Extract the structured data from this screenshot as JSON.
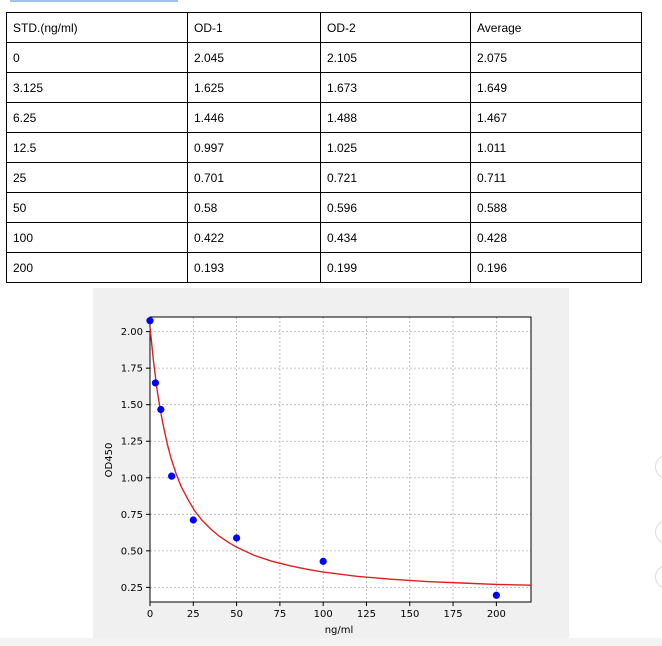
{
  "table": {
    "headers": [
      "STD.(ng/ml)",
      "OD-1",
      "OD-2",
      "Average"
    ],
    "rows": [
      [
        "0",
        "2.045",
        "2.105",
        "2.075"
      ],
      [
        "3.125",
        "1.625",
        "1.673",
        "1.649"
      ],
      [
        "6.25",
        "1.446",
        "1.488",
        "1.467"
      ],
      [
        "12.5",
        "0.997",
        "1.025",
        "1.011"
      ],
      [
        "25",
        "0.701",
        "0.721",
        "0.711"
      ],
      [
        "50",
        "0.58",
        "0.596",
        "0.588"
      ],
      [
        "100",
        "0.422",
        "0.434",
        "0.428"
      ],
      [
        "200",
        "0.193",
        "0.199",
        "0.196"
      ]
    ]
  },
  "chart_data": {
    "type": "scatter",
    "xlabel": "ng/ml",
    "ylabel": "OD450",
    "xlim": [
      0,
      220
    ],
    "ylim": [
      0.15,
      2.1
    ],
    "xticks": [
      0,
      25,
      50,
      75,
      100,
      125,
      150,
      175,
      200
    ],
    "yticks": [
      0.25,
      0.5,
      0.75,
      1.0,
      1.25,
      1.5,
      1.75,
      2.0
    ],
    "yticklabels": [
      "0.25",
      "0.50",
      "0.75",
      "1.00",
      "1.25",
      "1.50",
      "1.75",
      "2.00"
    ],
    "grid": true,
    "points": {
      "x": [
        0,
        3.125,
        6.25,
        12.5,
        25,
        50,
        100,
        200
      ],
      "y": [
        2.075,
        1.649,
        1.467,
        1.011,
        0.711,
        0.588,
        0.428,
        0.196
      ],
      "color": "#0000ff"
    },
    "fit_curve": {
      "color": "#e02020",
      "x": [
        0,
        2,
        4,
        6,
        8,
        10,
        12,
        15,
        18,
        22,
        26,
        30,
        35,
        40,
        45,
        50,
        60,
        70,
        80,
        90,
        100,
        120,
        140,
        160,
        180,
        200,
        220
      ],
      "y": [
        2.03,
        1.8,
        1.61,
        1.46,
        1.34,
        1.23,
        1.14,
        1.03,
        0.94,
        0.85,
        0.77,
        0.71,
        0.65,
        0.6,
        0.56,
        0.525,
        0.47,
        0.43,
        0.4,
        0.375,
        0.355,
        0.325,
        0.305,
        0.29,
        0.28,
        0.27,
        0.265
      ]
    }
  }
}
